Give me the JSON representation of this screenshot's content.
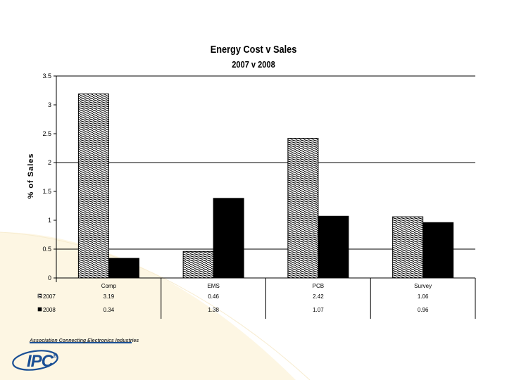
{
  "chart_data": {
    "type": "bar",
    "title": "Energy Cost v Sales",
    "subtitle": "2007 v 2008",
    "xlabel": "",
    "ylabel": "% of Sales",
    "categories": [
      "Comp",
      "EMS",
      "PCB",
      "Survey"
    ],
    "series": [
      {
        "name": "2007",
        "values": [
          3.19,
          0.46,
          2.42,
          1.06
        ],
        "value_labels": [
          "3.19",
          "0.46",
          "2.42",
          "1.06"
        ],
        "fill": "hatched"
      },
      {
        "name": "2008",
        "values": [
          0.34,
          1.38,
          1.07,
          0.96
        ],
        "value_labels": [
          "0.34",
          "1.38",
          "1.07",
          "0.96"
        ],
        "fill": "#000000"
      }
    ],
    "ylim": [
      0,
      3.5
    ],
    "yticks": [
      0,
      0.5,
      1,
      1.5,
      2,
      2.5,
      3,
      3.5
    ],
    "ytick_labels": [
      "0",
      "0.5",
      "1",
      "1.5",
      "2",
      "2.5",
      "3",
      "3.5"
    ],
    "grid": true,
    "legend": "data-table-left",
    "data_table": true
  },
  "footer": {
    "tagline": "Association Connecting Electronics Industries",
    "logo_text": "IPC",
    "logo_mark": "®"
  },
  "colors": {
    "logo_blue": "#1a4f95",
    "swoosh": "#fdf6e3"
  }
}
